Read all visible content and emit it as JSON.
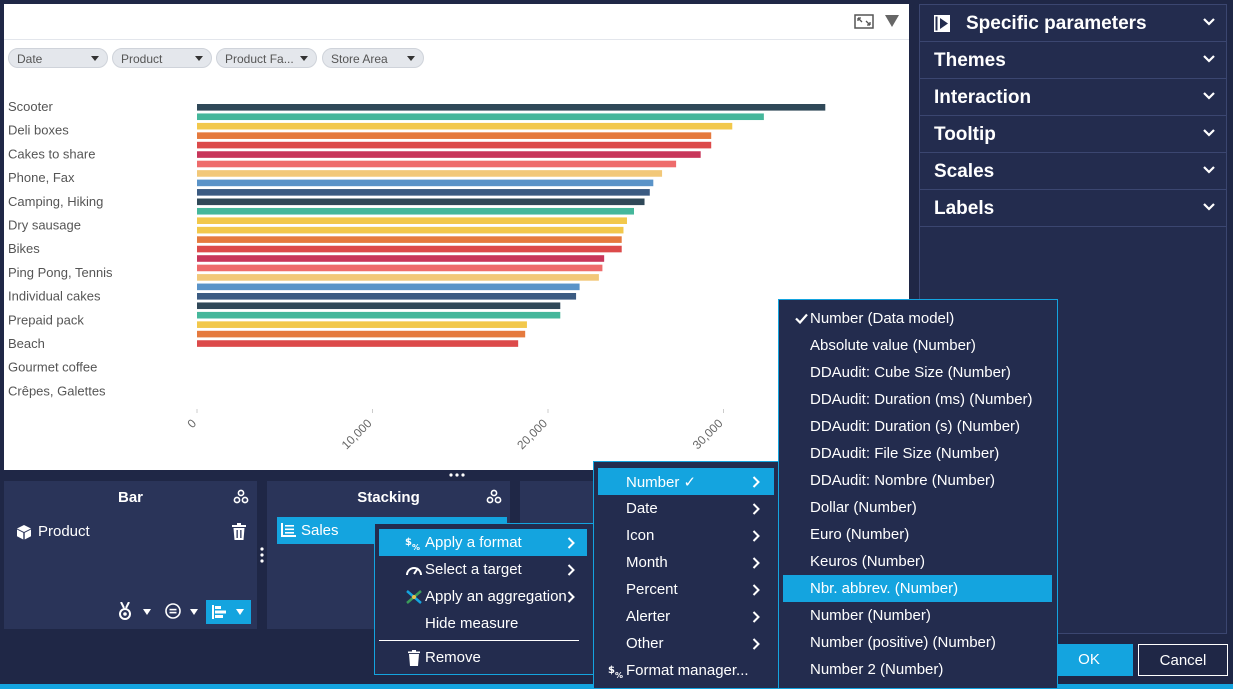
{
  "filters": [
    "Date",
    "Product",
    "Product Fa...",
    "Store Area"
  ],
  "chart_data": {
    "type": "bar",
    "orientation": "horizontal",
    "categories_labeled": [
      "Scooter",
      "Deli boxes",
      "Cakes to share",
      "Phone, Fax",
      "Camping, Hiking",
      "Dry sausage",
      "Bikes",
      "Ping Pong, Tennis",
      "Individual cakes",
      "Prepaid pack",
      "Beach",
      "Gourmet coffee",
      "Crêpes, Galettes"
    ],
    "values": [
      35800,
      32300,
      30500,
      29300,
      29300,
      28700,
      27300,
      26500,
      26000,
      25800,
      25500,
      24900,
      24500,
      24300,
      24200,
      24200,
      23200,
      23100,
      22900,
      21800,
      21600,
      20700,
      20700,
      18800,
      18700,
      18300
    ],
    "bar_colors": [
      "#2f4858",
      "#45b79b",
      "#f2c84b",
      "#e57a3e",
      "#dc4a4a",
      "#c8365a",
      "#ee6b6b",
      "#f2c879",
      "#5a93c8",
      "#3b5b82",
      "#2f4858",
      "#45b79b",
      "#f2c84b",
      "#f2c84b",
      "#e57a3e",
      "#dc4a4a",
      "#c8365a",
      "#ee6b6b",
      "#f2c879",
      "#5a93c8",
      "#3b5b82",
      "#2f4858",
      "#45b79b",
      "#f2c84b",
      "#e57a3e",
      "#dc4a4a"
    ],
    "x_ticks": [
      "0",
      "10,000",
      "20,000",
      "30,000"
    ],
    "xlim": [
      0,
      40000
    ]
  },
  "param_panel": {
    "items": [
      "Specific parameters",
      "Themes",
      "Interaction",
      "Tooltip",
      "Scales",
      "Labels"
    ]
  },
  "zones": {
    "bar": {
      "title": "Bar",
      "item": "Product"
    },
    "stacking": {
      "title": "Stacking",
      "item": "Sales"
    }
  },
  "context_menu": {
    "items": [
      "Apply a format",
      "Select a target",
      "Apply an aggregation",
      "Hide measure",
      "Remove"
    ]
  },
  "format_menu": {
    "items": [
      "Number ✓",
      "Date",
      "Icon",
      "Month",
      "Percent",
      "Alerter",
      "Other",
      "Format manager..."
    ]
  },
  "number_menu": {
    "items": [
      "Number (Data model)",
      "Absolute value (Number)",
      "DDAudit: Cube Size (Number)",
      "DDAudit: Duration (ms) (Number)",
      "DDAudit: Duration (s) (Number)",
      "DDAudit: File Size (Number)",
      "DDAudit: Nombre (Number)",
      "Dollar (Number)",
      "Euro (Number)",
      "Keuros (Number)",
      "Nbr. abbrev. (Number)",
      "Number (Number)",
      "Number (positive) (Number)",
      "Number 2 (Number)"
    ]
  },
  "buttons": {
    "ok": "OK",
    "cancel": "Cancel"
  },
  "colors": {
    "accent": "#14a4df",
    "background": "#1f2746",
    "panel": "#2a3459"
  }
}
